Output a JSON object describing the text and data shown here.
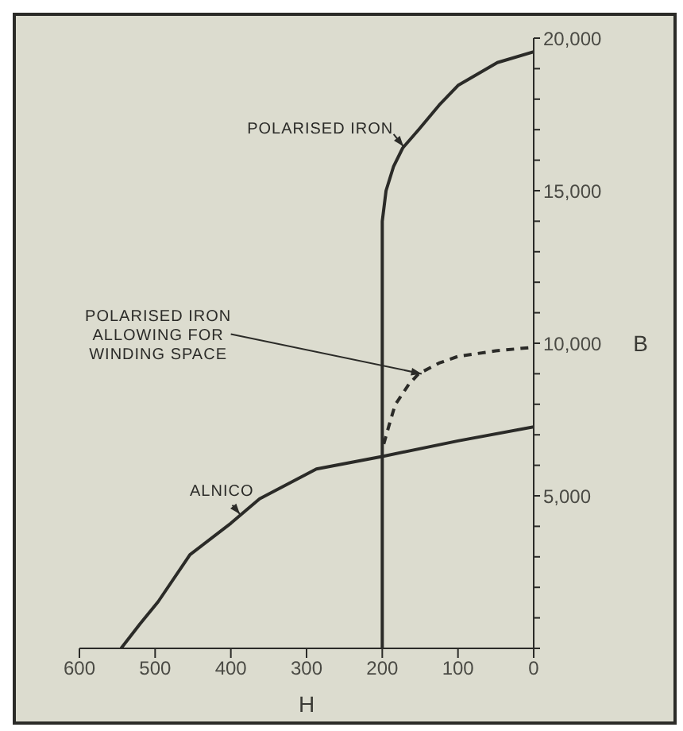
{
  "chart_data": {
    "type": "line",
    "xlabel": "H",
    "ylabel": "B",
    "xlim": [
      600,
      0
    ],
    "xticks": [
      600,
      500,
      400,
      300,
      200,
      100,
      0
    ],
    "ylim": [
      0,
      20000
    ],
    "yticks": [
      {
        "value": 0,
        "label": null
      },
      {
        "value": 1000,
        "label": null
      },
      {
        "value": 2000,
        "label": null
      },
      {
        "value": 3000,
        "label": null
      },
      {
        "value": 4000,
        "label": null
      },
      {
        "value": 5000,
        "label": "5,000"
      },
      {
        "value": 6000,
        "label": null
      },
      {
        "value": 7000,
        "label": null
      },
      {
        "value": 8000,
        "label": null
      },
      {
        "value": 9000,
        "label": null
      },
      {
        "value": 10000,
        "label": "10,000"
      },
      {
        "value": 11000,
        "label": null
      },
      {
        "value": 12000,
        "label": null
      },
      {
        "value": 13000,
        "label": null
      },
      {
        "value": 14000,
        "label": null
      },
      {
        "value": 15000,
        "label": "15,000"
      },
      {
        "value": 16000,
        "label": null
      },
      {
        "value": 17000,
        "label": null
      },
      {
        "value": 18000,
        "label": null
      },
      {
        "value": 19000,
        "label": null
      },
      {
        "value": 20000,
        "label": "20,000"
      }
    ],
    "grid": false,
    "legend": false,
    "marker": "none",
    "series": [
      {
        "name": "POLARISED IRON",
        "color": "#2b2b28",
        "line_style": "solid",
        "x": [
          200,
          200,
          195,
          185,
          173,
          152,
          125,
          100,
          48,
          0
        ],
        "values": [
          0,
          14000,
          15000,
          15800,
          16400,
          17000,
          17800,
          18450,
          19200,
          19550
        ]
      },
      {
        "name": "POLARISED IRON ALLOWING FOR WINDING SPACE",
        "color": "#2b2b28",
        "line_style": "dashed",
        "x": [
          198,
          190,
          183,
          165,
          152,
          125,
          100,
          50,
          0
        ],
        "values": [
          6700,
          7400,
          7980,
          8650,
          9000,
          9350,
          9570,
          9750,
          9870
        ]
      },
      {
        "name": "ALNICO",
        "color": "#2b2b28",
        "line_style": "solid",
        "x": [
          545,
          520,
          496,
          454,
          400,
          362,
          287,
          200,
          100,
          0
        ],
        "values": [
          0,
          800,
          1530,
          3070,
          4100,
          4900,
          5880,
          6290,
          6800,
          7260
        ]
      }
    ]
  }
}
